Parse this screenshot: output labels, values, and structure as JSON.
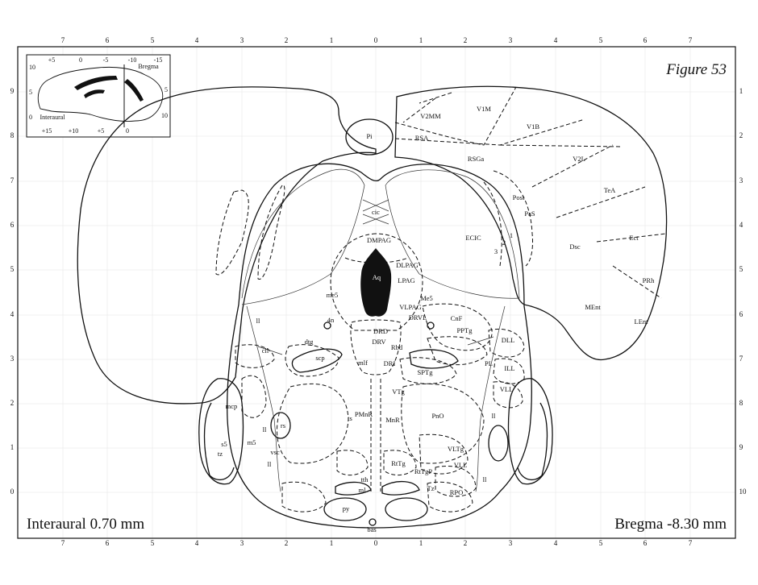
{
  "figure_label": "Figure 53",
  "interaural_label": "Interaural 0.70 mm",
  "bregma_label": "Bregma -8.30 mm",
  "top_ticks": [
    "7",
    "6",
    "5",
    "4",
    "3",
    "2",
    "1",
    "0",
    "1",
    "2",
    "3",
    "4",
    "5",
    "6",
    "7"
  ],
  "bottom_ticks": [
    "7",
    "6",
    "5",
    "4",
    "3",
    "2",
    "1",
    "0",
    "1",
    "2",
    "3",
    "4",
    "5",
    "6",
    "7"
  ],
  "left_ticks": [
    "9",
    "8",
    "7",
    "6",
    "5",
    "4",
    "3",
    "2",
    "1",
    "0"
  ],
  "right_ticks": [
    "1",
    "2",
    "3",
    "4",
    "5",
    "6",
    "7",
    "8",
    "9",
    "10"
  ],
  "inset": {
    "top_scale": [
      "+5",
      "0",
      "-5",
      "-10",
      "-15"
    ],
    "bottom_scale": [
      "+15",
      "+10",
      "+5",
      "0"
    ],
    "left_scale": [
      "10",
      "5",
      "0"
    ],
    "right_scale": [
      "5",
      "10"
    ],
    "bregma": "Bregma",
    "interaural": "Interaural"
  },
  "regions": {
    "Pi": "Pi",
    "V1M": "V1M",
    "V2MM": "V2MM",
    "V1B": "V1B",
    "RSA": "RSA",
    "RSGa": "RSGa",
    "V2L": "V2L",
    "TeA": "TeA",
    "Post": "Post",
    "PaS": "PaS",
    "cic": "cic",
    "ECIC": "ECIC",
    "Ect": "Ect",
    "Dsc": "Dsc",
    "n1": "1",
    "n2": "2",
    "n3": "3",
    "DMPAG": "DMPAG",
    "DLPAG": "DLPAG",
    "LPAG": "LPAG",
    "Aq": "Aq",
    "PRh": "PRh",
    "MEnt": "MEnt",
    "LEnt": "LEnt",
    "me5": "me5",
    "Me5": "Me5",
    "VLPAG": "VLPAG",
    "DRVL": "DRVL",
    "ll_top": "ll",
    "4n": "4n",
    "DRD": "DRD",
    "CnF": "CnF",
    "PPTg": "PPTg",
    "DLL": "DLL",
    "dtg": "dtg",
    "DRV": "DRV",
    "Rbd": "Rbd",
    "cll": "cll",
    "scp": "scp",
    "mlf": "mlf",
    "DRI": "DRI",
    "PL": "PL",
    "ILL": "ILL",
    "SPTg": "SPTg",
    "VTg": "VTg",
    "VLL_r": "VLL",
    "mcp": "mcp",
    "rs": "rs",
    "ll_left": "ll",
    "ts": "ts",
    "PMnR": "PMnR",
    "MnR": "MnR",
    "PnO": "PnO",
    "ll_right": "ll",
    "s5": "s5",
    "m5": "m5",
    "vsc": "vsc",
    "tz": "tz",
    "VLTg": "VLTg",
    "RtTg": "RtTg",
    "RtTgP": "RtTgP",
    "VLL_b": "VLL",
    "ll_bottom": "ll",
    "ll_br": "ll",
    "tth": "tth",
    "ml": "ml",
    "Tz": "Tz",
    "RPO": "RPO",
    "py": "py",
    "bas": "bas"
  }
}
